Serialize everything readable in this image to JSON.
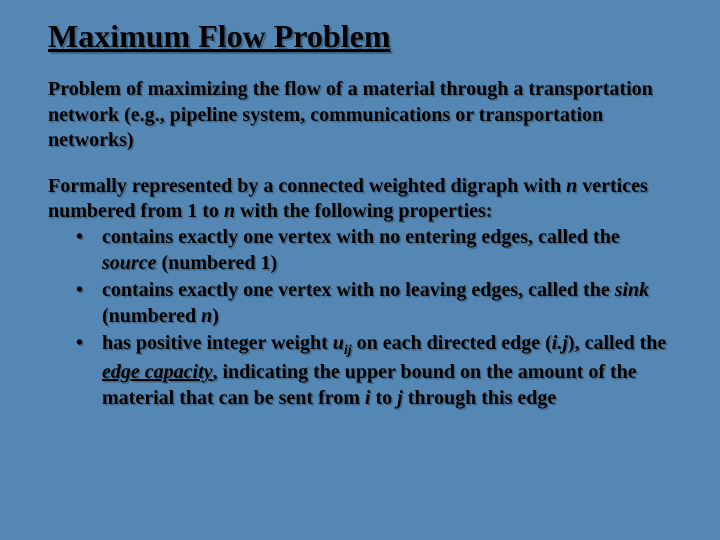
{
  "background_color": "#5487b3",
  "text_color": "#000000",
  "shadow_color": "rgba(0,0,0,0.25)",
  "font_family": "Times New Roman",
  "title": {
    "text": "Maximum Flow Problem",
    "fontsize": 32,
    "bold": true,
    "underline": true
  },
  "body_fontsize": 20,
  "para1": "Problem of maximizing the flow of a material through a transportation network (e.g., pipeline system, communications or transportation networks)",
  "para2_lead_a": "Formally represented by a connected weighted digraph with ",
  "para2_n1": "n",
  "para2_lead_b": " vertices numbered from 1 to ",
  "para2_n2": "n",
  "para2_lead_c": "  with the following properties:",
  "bullets": {
    "b1_a": "contains exactly one vertex with no entering edges, called the",
    "b1_space": " ",
    "b1_source": "source",
    "b1_b": "  (numbered 1)",
    "b2_a": "contains exactly one vertex with no leaving edges, called the ",
    "b2_sink": "sink",
    "b2_b": " (numbered ",
    "b2_n": "n",
    "b2_c": ")",
    "b3_a": "has positive integer weight ",
    "b3_u": "u",
    "b3_ij": "ij",
    "b3_b": " on each directed edge (",
    "b3_ij2": "i.j",
    "b3_c": "), called the  ",
    "b3_cap": "edge capacity",
    "b3_d": ",  indicating the upper bound on the amount of the material that can be sent from ",
    "b3_i": "i",
    "b3_e": " to ",
    "b3_j": "j",
    "b3_f": " through this edge"
  }
}
